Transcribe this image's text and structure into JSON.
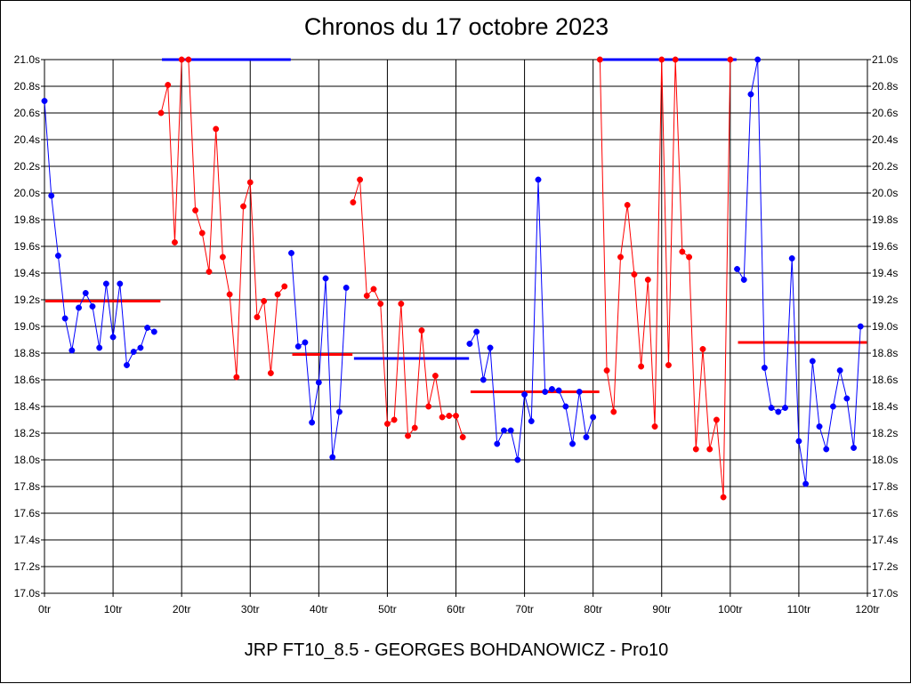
{
  "chart_data": {
    "type": "line",
    "title": "Chronos du 17 octobre 2023",
    "footer": "JRP FT10_8.5 - GEORGES BOHDANOWICZ - Pro10",
    "xlabel": "",
    "ylabel": "",
    "xlim": [
      0,
      120
    ],
    "ylim": [
      17.0,
      21.0
    ],
    "x_ticks": [
      "0tr",
      "10tr",
      "20tr",
      "30tr",
      "40tr",
      "50tr",
      "60tr",
      "70tr",
      "80tr",
      "90tr",
      "100tr",
      "110tr",
      "120tr"
    ],
    "y_ticks": [
      "17.0s",
      "17.2s",
      "17.4s",
      "17.6s",
      "17.8s",
      "18.0s",
      "18.2s",
      "18.4s",
      "18.6s",
      "18.8s",
      "19.0s",
      "19.2s",
      "19.4s",
      "19.6s",
      "19.8s",
      "20.0s",
      "20.2s",
      "20.4s",
      "20.6s",
      "20.8s",
      "21.0s"
    ],
    "grid": true,
    "legend": "none",
    "series": [
      {
        "color": "#0000ff",
        "x": [
          0,
          1,
          2,
          3,
          4,
          5,
          6,
          7,
          8,
          9,
          10,
          11,
          12,
          13,
          14,
          15,
          16
        ],
        "values": [
          20.69,
          19.98,
          19.53,
          19.06,
          18.82,
          19.14,
          19.25,
          19.15,
          18.84,
          19.32,
          18.92,
          19.32,
          18.71,
          18.81,
          18.84,
          18.99,
          18.96
        ]
      },
      {
        "color": "#ff0000",
        "x": [
          17,
          18,
          19,
          20,
          21,
          22,
          23,
          24,
          25,
          26,
          27,
          28,
          29,
          30,
          31,
          32,
          33,
          34,
          35
        ],
        "values": [
          20.6,
          20.81,
          19.63,
          21.0,
          21.0,
          19.87,
          19.7,
          19.41,
          20.48,
          19.52,
          19.24,
          18.62,
          19.9,
          20.08,
          19.07,
          19.19,
          18.65,
          19.24,
          19.3
        ]
      },
      {
        "color": "#0000ff",
        "x": [
          36,
          37,
          38,
          39,
          40,
          41,
          42,
          43,
          44
        ],
        "values": [
          19.55,
          18.85,
          18.88,
          18.28,
          18.58,
          19.36,
          18.02,
          18.36,
          19.29
        ]
      },
      {
        "color": "#ff0000",
        "x": [
          45,
          46,
          47,
          48,
          49,
          50,
          51,
          52,
          53,
          54,
          55,
          56,
          57,
          58,
          59,
          60,
          61
        ],
        "values": [
          19.93,
          20.1,
          19.23,
          19.28,
          19.17,
          18.27,
          18.3,
          19.17,
          18.18,
          18.24,
          18.97,
          18.4,
          18.63,
          18.32,
          18.33,
          18.33,
          18.17
        ]
      },
      {
        "color": "#0000ff",
        "x": [
          62,
          63,
          64,
          65,
          66,
          67,
          68,
          69,
          70,
          71,
          72,
          73,
          74,
          75,
          76,
          77,
          78,
          79,
          80
        ],
        "values": [
          18.87,
          18.96,
          18.6,
          18.84,
          18.12,
          18.22,
          18.22,
          18.0,
          18.49,
          18.29,
          20.1,
          18.51,
          18.53,
          18.52,
          18.4,
          18.12,
          18.51,
          18.17,
          18.32
        ]
      },
      {
        "color": "#ff0000",
        "x": [
          81,
          82,
          83,
          84,
          85,
          86,
          87,
          88,
          89,
          90,
          91,
          92,
          93,
          94,
          95,
          96,
          97,
          98,
          99,
          100
        ],
        "values": [
          21.0,
          18.67,
          18.36,
          19.52,
          19.91,
          19.39,
          18.7,
          19.35,
          18.25,
          21.0,
          18.71,
          21.0,
          19.56,
          19.52,
          18.08,
          18.83,
          18.08,
          18.3,
          17.72,
          21.0
        ]
      },
      {
        "color": "#0000ff",
        "x": [
          101,
          102,
          103,
          104,
          105,
          106,
          107,
          108,
          109,
          110,
          111,
          112,
          113,
          114,
          115,
          116,
          117,
          118,
          119
        ],
        "values": [
          19.43,
          19.35,
          20.74,
          21.0,
          18.69,
          18.39,
          18.36,
          18.39,
          19.51,
          18.14,
          17.82,
          18.74,
          18.25,
          18.08,
          18.4,
          18.67,
          18.46,
          18.09,
          19.0
        ]
      }
    ],
    "average_lines": [
      {
        "color": "#ff0000",
        "x": [
          0,
          16
        ],
        "value": 19.19
      },
      {
        "color": "#0000ff",
        "x": [
          17,
          35
        ],
        "value": 21.0
      },
      {
        "color": "#ff0000",
        "x": [
          36,
          44
        ],
        "value": 18.79
      },
      {
        "color": "#0000ff",
        "x": [
          45,
          61
        ],
        "value": 18.76
      },
      {
        "color": "#ff0000",
        "x": [
          62,
          80
        ],
        "value": 18.51
      },
      {
        "color": "#0000ff",
        "x": [
          81,
          100
        ],
        "value": 21.0
      },
      {
        "color": "#ff0000",
        "x": [
          101,
          119
        ],
        "value": 18.88
      }
    ]
  }
}
